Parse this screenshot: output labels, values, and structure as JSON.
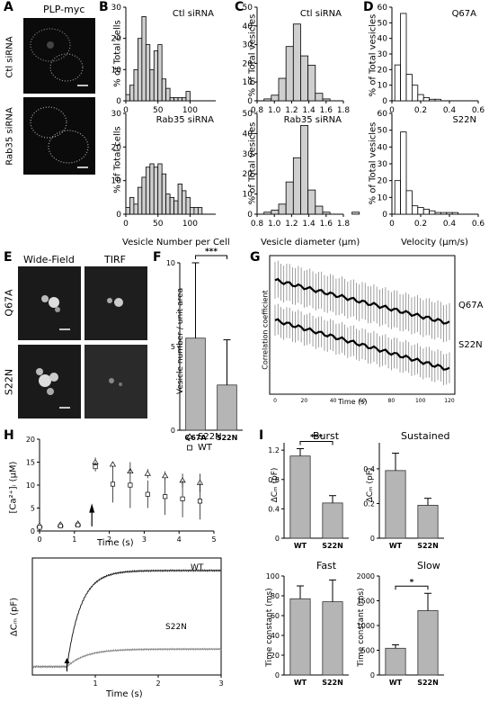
{
  "letters": {
    "A": "A",
    "B": "B",
    "C": "C",
    "D": "D",
    "E": "E",
    "F": "F",
    "G": "G",
    "H": "H",
    "I": "I"
  },
  "A": {
    "title": "PLP-myc",
    "row1": "Ctl siRNA",
    "row2": "Rab35 siRNA"
  },
  "B": {
    "top_title": "Ctl siRNA",
    "bottom_title": "Rab35 siRNA",
    "ylabel": "% of Total cells",
    "xlabel": "Vesicle Number per Cell"
  },
  "C": {
    "top_title": "Ctl siRNA",
    "bottom_title": "Rab35 siRNA",
    "ylabel": "% of Total vesicles",
    "xlabel": "Vesicle diameter (μm)"
  },
  "D": {
    "top_title": "Q67A",
    "bottom_title": "S22N",
    "ylabel": "% of Total vesicles",
    "xlabel": "Velocity (μm/s)"
  },
  "E": {
    "col1": "Wide-Field",
    "col2": "TIRF",
    "row1": "Q67A",
    "row2": "S22N"
  },
  "F": {
    "ylabel": "Vesicle number / unit area",
    "sig": "***"
  },
  "G": {
    "ylabel": "Correlation coefficient",
    "xlabel": "Time (s)",
    "label_q": "Q67A",
    "label_s": "S22N"
  },
  "H": {
    "ylabel": "[Ca²⁺]ᵢ (μM)",
    "xlabel": "Time (s)",
    "legend_s": "S22N",
    "legend_w": "WT",
    "trace_ylabel": "ΔCₘ (pF)",
    "trace_xlabel": "Time (s)",
    "trace_wt": "WT",
    "trace_s": "S22N"
  },
  "I": {
    "burst_title": "Burst",
    "sustained_title": "Sustained",
    "fast_title": "Fast",
    "slow_title": "Slow",
    "cm_ylabel": "ΔCₘ (pF)",
    "tc_ylabel": "Time constant (ms)",
    "sig_burst": "***",
    "sig_slow": "*"
  },
  "chart_data": [
    {
      "id": "B-top",
      "type": "bar",
      "title": "Ctl siRNA",
      "ylabel": "% of Total cells",
      "xlabel": "",
      "ylim": [
        0,
        30
      ],
      "xlim": [
        0,
        140
      ],
      "bin_width": 6.25,
      "x_start": 0,
      "values": [
        2,
        5,
        10,
        20,
        27,
        18,
        10,
        16,
        18,
        7,
        4,
        1,
        1,
        1,
        1,
        3
      ]
    },
    {
      "id": "B-bottom",
      "type": "bar",
      "title": "Rab35 siRNA",
      "ylabel": "% of Total cells",
      "xlabel": "Vesicle Number per Cell",
      "ylim": [
        0,
        30
      ],
      "xlim": [
        0,
        140
      ],
      "bin_width": 6.25,
      "x_start": 0,
      "values": [
        2,
        5,
        3,
        8,
        11,
        14,
        15,
        14,
        15,
        12,
        6,
        5,
        4,
        9,
        7,
        5,
        2,
        2,
        2
      ]
    },
    {
      "id": "C-top",
      "type": "bar",
      "title": "Ctl siRNA",
      "ylabel": "% of Total vesicles",
      "xlabel": "",
      "ylim": [
        0,
        50
      ],
      "xlim": [
        0.8,
        1.8
      ],
      "bin_width": 0.085,
      "x_start": 0.88,
      "values": [
        1,
        3,
        12,
        29,
        41,
        24,
        19,
        4,
        1
      ]
    },
    {
      "id": "C-bottom",
      "type": "bar",
      "title": "Rab35 siRNA",
      "ylabel": "% of Total vesicles",
      "xlabel": "Vesicle diameter (μm)",
      "ylim": [
        0,
        50
      ],
      "xlim": [
        0.8,
        1.8
      ],
      "bin_width": 0.085,
      "x_start": 0.88,
      "values": [
        1,
        2,
        5,
        16,
        28,
        44,
        12,
        4,
        1,
        0,
        0,
        0,
        1
      ]
    },
    {
      "id": "D-top",
      "type": "bar",
      "title": "Q67A",
      "ylabel": "% of Total vesicles",
      "xlabel": "",
      "ylim": [
        0,
        60
      ],
      "xlim": [
        0,
        0.6
      ],
      "bin_width": 0.04,
      "x_start": 0.02,
      "values": [
        23,
        56,
        17,
        10,
        4,
        2,
        1,
        1,
        0
      ]
    },
    {
      "id": "D-bottom",
      "type": "bar",
      "title": "S22N",
      "ylabel": "% of Total vesicles",
      "xlabel": "Velocity (μm/s)",
      "ylim": [
        0,
        60
      ],
      "xlim": [
        0,
        0.6
      ],
      "bin_width": 0.04,
      "x_start": 0.02,
      "values": [
        20,
        49,
        14,
        5,
        4,
        3,
        2,
        1,
        1,
        1,
        1
      ]
    },
    {
      "id": "F",
      "type": "bar",
      "categories": [
        "Q67A",
        "S22N"
      ],
      "values": [
        5.5,
        2.7
      ],
      "errors": [
        4.5,
        2.7
      ],
      "ylabel": "Vesicle number / unit area",
      "ylim": [
        0,
        10
      ]
    },
    {
      "id": "G",
      "type": "line",
      "xlabel": "Time (s)",
      "ylabel": "Correlation coefficient",
      "xlim": [
        0,
        120
      ],
      "ylim": [
        0.3,
        0.75
      ],
      "series": [
        {
          "name": "Q67A",
          "start": 0.67,
          "end": 0.53,
          "err": 0.06
        },
        {
          "name": "S22N",
          "start": 0.54,
          "end": 0.38,
          "err": 0.05
        }
      ]
    },
    {
      "id": "H-ca",
      "type": "scatter",
      "xlabel": "Time (s)",
      "ylabel": "[Ca²⁺]ᵢ (μM)",
      "xlim": [
        0,
        5
      ],
      "ylim": [
        0,
        20
      ],
      "series": [
        {
          "name": "S22N",
          "x": [
            0,
            0.6,
            1.1,
            1.6,
            2.1,
            2.6,
            3.1,
            3.6,
            4.1,
            4.6
          ],
          "y": [
            1.2,
            1.4,
            1.6,
            15,
            14.5,
            13,
            12.5,
            12,
            11,
            10.5
          ],
          "err": [
            0.3,
            0.4,
            0.4,
            1,
            0.5,
            0.5,
            1,
            1,
            1.5,
            2
          ]
        },
        {
          "name": "WT",
          "x": [
            0,
            0.6,
            1.1,
            1.6,
            2.1,
            2.6,
            3.1,
            3.6,
            4.1,
            4.6
          ],
          "y": [
            0.8,
            1.1,
            1.3,
            14,
            10.2,
            10,
            8,
            7.5,
            7,
            6.5
          ],
          "err": [
            0.3,
            0.3,
            0.3,
            1,
            4,
            5,
            3,
            4,
            4,
            4
          ]
        }
      ]
    },
    {
      "id": "H-trace",
      "type": "line",
      "xlabel": "Time (s)",
      "ylabel": "ΔCₘ (pF)",
      "xlim": [
        0,
        3
      ],
      "ylim": [
        0,
        1.4
      ],
      "series": [
        {
          "name": "WT",
          "plateau": 1.25,
          "onset": 0.55,
          "tau": 0.22
        },
        {
          "name": "S22N",
          "plateau": 0.3,
          "onset": 0.55,
          "tau": 0.3
        }
      ]
    },
    {
      "id": "I-burst",
      "type": "bar",
      "title": "Burst",
      "categories": [
        "WT",
        "S22N"
      ],
      "values": [
        1.12,
        0.48
      ],
      "errors": [
        0.1,
        0.1
      ],
      "ylim": [
        0,
        1.3
      ],
      "yticks": [
        0,
        0.4,
        0.8,
        1.2
      ]
    },
    {
      "id": "I-sustained",
      "type": "bar",
      "title": "Sustained",
      "categories": [
        "WT",
        "S22N"
      ],
      "values": [
        0.39,
        0.19
      ],
      "errors": [
        0.1,
        0.04
      ],
      "ylim": [
        0,
        0.55
      ],
      "yticks": [
        0,
        0.2,
        0.4
      ]
    },
    {
      "id": "I-fast",
      "type": "bar",
      "title": "Fast",
      "categories": [
        "WT",
        "S22N"
      ],
      "values": [
        77,
        74
      ],
      "errors": [
        13,
        22
      ],
      "ylim": [
        0,
        100
      ],
      "yticks": [
        0,
        20,
        40,
        60,
        80,
        100
      ]
    },
    {
      "id": "I-slow",
      "type": "bar",
      "title": "Slow",
      "categories": [
        "WT",
        "S22N"
      ],
      "values": [
        540,
        1300
      ],
      "errors": [
        70,
        350
      ],
      "ylim": [
        0,
        2000
      ],
      "yticks": [
        0,
        500,
        1000,
        1500,
        2000
      ]
    }
  ]
}
